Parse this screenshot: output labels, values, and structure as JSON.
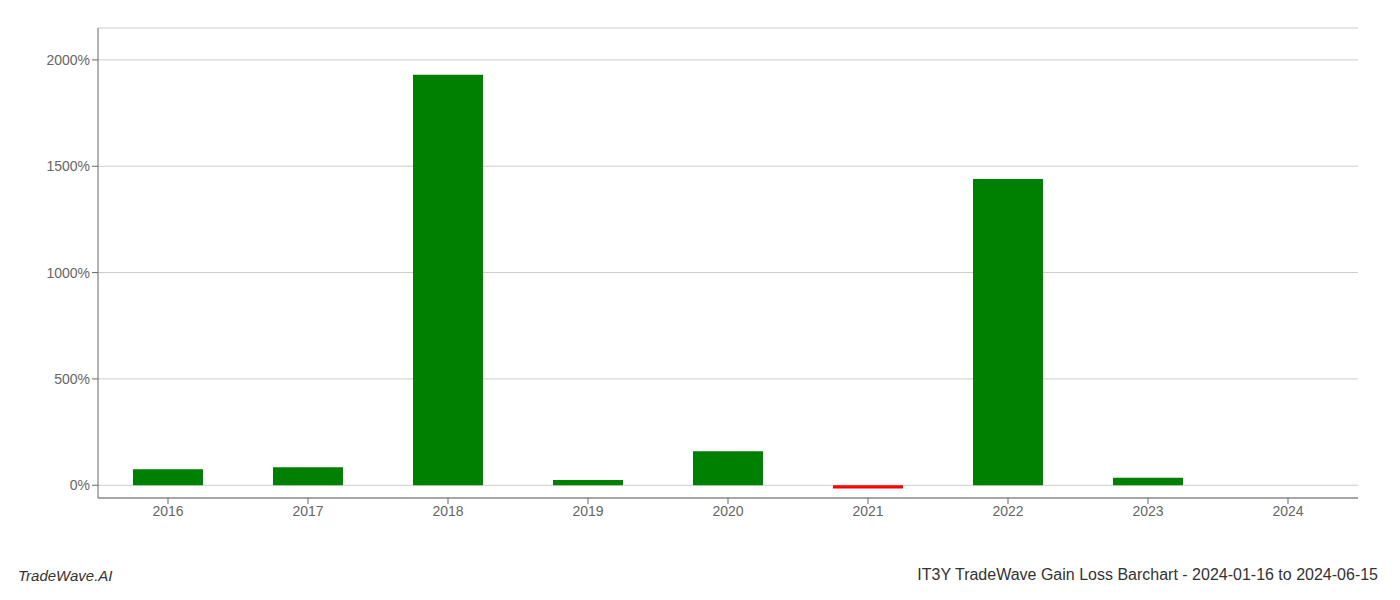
{
  "chart_data": {
    "type": "bar",
    "title": "IT3Y TradeWave Gain Loss Barchart - 2024-01-16 to 2024-06-15",
    "annotations": [
      "TradeWave.AI"
    ],
    "categories": [
      "2016",
      "2017",
      "2018",
      "2019",
      "2020",
      "2021",
      "2022",
      "2023",
      "2024"
    ],
    "values": [
      75,
      85,
      1930,
      25,
      160,
      -15,
      1440,
      35,
      0
    ],
    "colors": [
      "#008000",
      "#008000",
      "#008000",
      "#008000",
      "#008000",
      "#ff0000",
      "#008000",
      "#008000",
      "#008000"
    ],
    "ylim": [
      -60,
      2150
    ],
    "yticks": [
      {
        "value": 0,
        "label": "0%"
      },
      {
        "value": 500,
        "label": "500%"
      },
      {
        "value": 1000,
        "label": "1000%"
      },
      {
        "value": 1500,
        "label": "1500%"
      },
      {
        "value": 2000,
        "label": "2000%"
      }
    ],
    "grid": true
  }
}
